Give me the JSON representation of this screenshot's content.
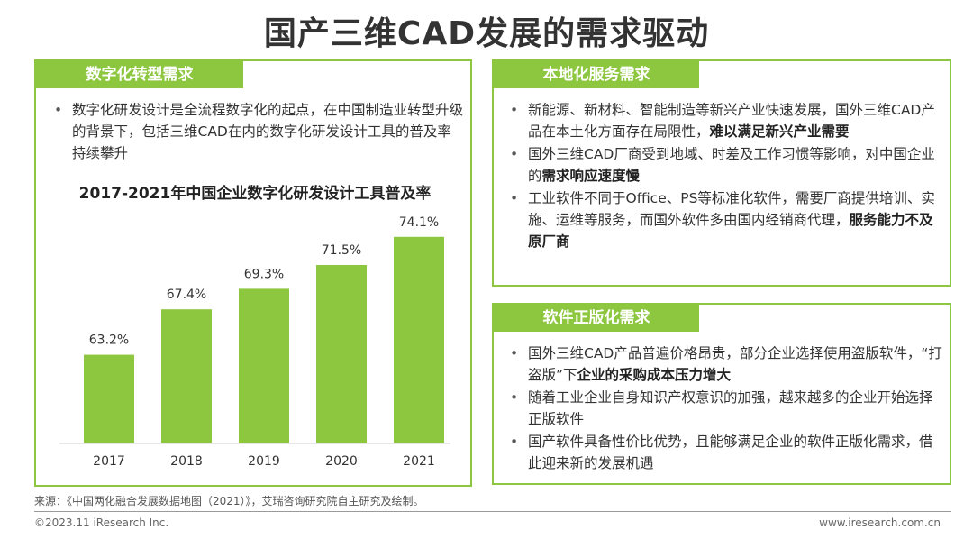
{
  "title": "国产三维CAD发展的需求驱动",
  "left_panel": {
    "tag": "数字化转型需求",
    "bullets": [
      {
        "parts": [
          {
            "text": "数字化研发设计是全流程数字化的起点，在中国制造业转型升级的背景下，包括三维CAD在内的数字化研发设计工具的普及率持续攀升",
            "bold": false
          }
        ]
      }
    ],
    "chart_title": "2017-2021年中国企业数字化研发设计工具普及率"
  },
  "chart_data": {
    "type": "bar",
    "title": "2017-2021年中国企业数字化研发设计工具普及率",
    "categories": [
      "2017",
      "2018",
      "2019",
      "2020",
      "2021"
    ],
    "series": [
      {
        "name": "普及率",
        "values": [
          63.2,
          67.4,
          69.3,
          71.5,
          74.1
        ]
      }
    ],
    "value_labels": [
      "63.2%",
      "67.4%",
      "69.3%",
      "71.5%",
      "74.1%"
    ],
    "ylim": [
      55,
      76
    ],
    "bar_color": "#8dc63f",
    "legend": "bottom-center",
    "grid": false
  },
  "right_top_panel": {
    "tag": "本地化服务需求",
    "bullets": [
      {
        "parts": [
          {
            "text": "新能源、新材料、智能制造等新兴产业快速发展，国外三维CAD产品在本土化方面存在局限性，",
            "bold": false
          },
          {
            "text": "难以满足新兴产业需要",
            "bold": true
          }
        ]
      },
      {
        "parts": [
          {
            "text": "国外三维CAD厂商受到地域、时差及工作习惯等影响，对中国企业的",
            "bold": false
          },
          {
            "text": "需求响应速度慢",
            "bold": true
          }
        ]
      },
      {
        "parts": [
          {
            "text": "工业软件不同于Office、PS等标准化软件，需要厂商提供培训、实施、运维等服务，而国外软件多由国内经销商代理，",
            "bold": false
          },
          {
            "text": "服务能力不及原厂商",
            "bold": true
          }
        ]
      }
    ]
  },
  "right_bottom_panel": {
    "tag": "软件正版化需求",
    "bullets": [
      {
        "parts": [
          {
            "text": "国外三维CAD产品普遍价格昂贵，部分企业选择使用盗版软件，“打盗版”下",
            "bold": false
          },
          {
            "text": "企业的采购成本压力增大",
            "bold": true
          }
        ]
      },
      {
        "parts": [
          {
            "text": "随着工业企业自身知识产权意识的加强，越来越多的企业开始选择正版软件",
            "bold": false
          }
        ]
      },
      {
        "parts": [
          {
            "text": "国产软件具备性价比优势，且能够满足企业的软件正版化需求，借此迎来新的发展机遇",
            "bold": false
          }
        ]
      }
    ]
  },
  "footer": {
    "source": "来源：《中国两化融合发展数据地图（2021）》，艾瑞咨询研究院自主研究及绘制。",
    "copyright": "©2023.11 iResearch Inc.",
    "website": "www.iresearch.com.cn"
  },
  "colors": {
    "accent": "#8dc63f",
    "text": "#333333"
  }
}
